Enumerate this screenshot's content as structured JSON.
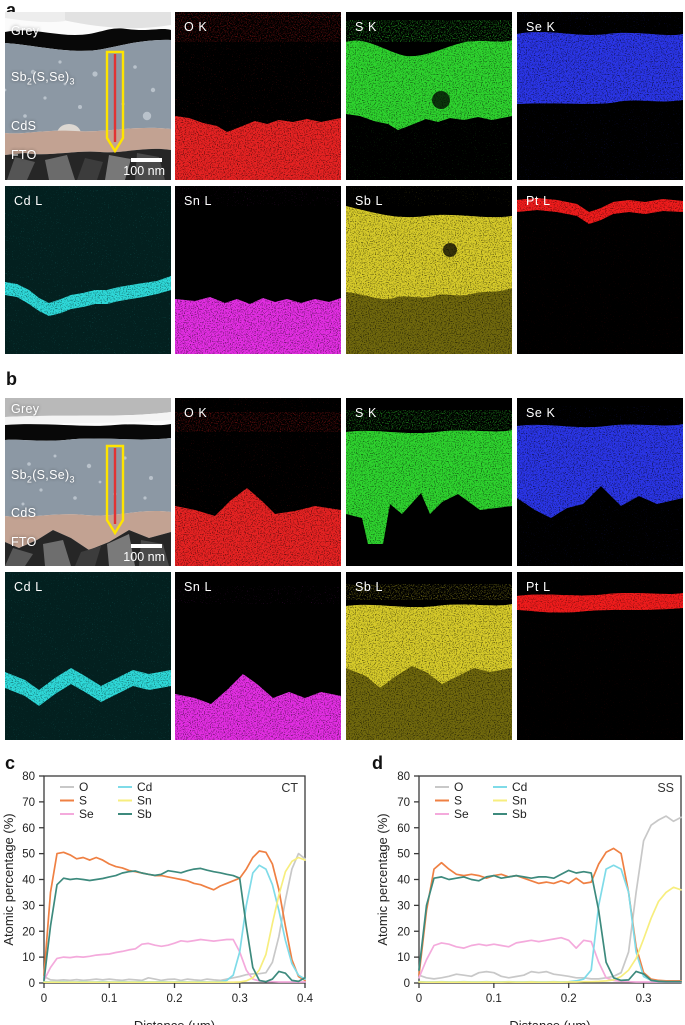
{
  "colors": {
    "o": "#c8c8c8",
    "s": "#ef8043",
    "se": "#f4aadc",
    "cd": "#7fdbe8",
    "sn": "#f7ee7e",
    "sb": "#3d8a7d",
    "map_red": "#e62222",
    "map_green": "#2fd32f",
    "map_blue": "#2b36e6",
    "map_cyan": "#2fd9d9",
    "map_magenta": "#e22ee2",
    "map_yellow": "#d6ca2a",
    "map_olive": "#6f680f",
    "map_pt_red": "#ee1a1a",
    "arrow_outline": "#ffe400",
    "arrow_line": "#e23333"
  },
  "panel_a": {
    "label": "a",
    "tem": {
      "grey": "Grey",
      "f0": "Sb",
      "f1": "2",
      "f2": "(S,Se)",
      "f3": "3",
      "cds": "CdS",
      "fto": "FTO",
      "scale": "100 nm"
    },
    "maps": [
      {
        "label": "O K"
      },
      {
        "label": "S K"
      },
      {
        "label": "Se K"
      },
      {
        "label": "Cd L"
      },
      {
        "label": "Sn L"
      },
      {
        "label": "Sb L"
      },
      {
        "label": "Pt L"
      }
    ]
  },
  "panel_b": {
    "label": "b",
    "tem": {
      "grey": "Grey",
      "f0": "Sb",
      "f1": "2",
      "f2": "(S,Se)",
      "f3": "3",
      "cds": "CdS",
      "fto": "FTO",
      "scale": "100 nm"
    },
    "maps": [
      {
        "label": "O K"
      },
      {
        "label": "S K"
      },
      {
        "label": "Se K"
      },
      {
        "label": "Cd L"
      },
      {
        "label": "Sn L"
      },
      {
        "label": "Sb L"
      },
      {
        "label": "Pt L"
      }
    ]
  },
  "chart_data": [
    {
      "id": "c",
      "panel_label": "c",
      "type": "line",
      "corner_label": "CT",
      "xlabel": "Distance (μm)",
      "ylabel": "Atomic percentage (%)",
      "xlim": [
        0,
        0.4
      ],
      "ylim": [
        0,
        80
      ],
      "xticks": [
        0,
        0.1,
        0.2,
        0.3,
        0.4
      ],
      "yticks": [
        0,
        10,
        20,
        30,
        40,
        50,
        60,
        70,
        80
      ],
      "legend_position": "top-left",
      "grid": false,
      "x_step": 0.01,
      "series": [
        {
          "name": "O",
          "color_key": "o",
          "values": [
            2.5,
            1.2,
            1.0,
            1.2,
            1.0,
            1.3,
            1.0,
            1.2,
            1.5,
            1.2,
            1.5,
            1.2,
            1.0,
            1.4,
            1.2,
            1.0,
            2.0,
            1.5,
            1.0,
            1.4,
            1.5,
            1.0,
            1.5,
            1.2,
            1.0,
            1.5,
            1.2,
            1.0,
            1.5,
            2.0,
            2.5,
            3.2,
            3.5,
            3.6,
            4.0,
            8.0,
            18,
            32,
            44,
            50,
            48
          ]
        },
        {
          "name": "S",
          "color_key": "s",
          "values": [
            3,
            35,
            50,
            50.5,
            49.5,
            48,
            48.5,
            47.5,
            48.5,
            47.5,
            46,
            45,
            44.5,
            43.5,
            43,
            42.5,
            42,
            41.5,
            41.5,
            41,
            40.5,
            40,
            39.5,
            38.5,
            38,
            37,
            36,
            37.5,
            38.5,
            39.5,
            40.5,
            44,
            48.5,
            51,
            50.5,
            46,
            36,
            22,
            9,
            2.5,
            1
          ]
        },
        {
          "name": "Se",
          "color_key": "se",
          "values": [
            1,
            6,
            9.5,
            10,
            9.8,
            10.2,
            10,
            10.3,
            10.8,
            11,
            11.2,
            11.8,
            12.2,
            12.8,
            13.2,
            15,
            15.3,
            14.6,
            14.2,
            14.6,
            15.4,
            16.3,
            16,
            16.4,
            16.8,
            16.5,
            16.2,
            16.5,
            16.8,
            16.8,
            12,
            5,
            1.5,
            0.8,
            0.5,
            0.5,
            0.4,
            0.4,
            0.4,
            0.4,
            0.4
          ]
        },
        {
          "name": "Cd",
          "color_key": "cd",
          "values": [
            0.5,
            0.4,
            0.4,
            0.5,
            0.4,
            0.4,
            0.5,
            0.4,
            0.4,
            0.5,
            0.4,
            0.4,
            0.5,
            0.4,
            0.4,
            0.5,
            0.4,
            0.4,
            0.5,
            0.4,
            0.4,
            0.5,
            0.4,
            0.4,
            0.5,
            0.4,
            0.4,
            0.5,
            1.0,
            3.0,
            12,
            30,
            42.5,
            45.5,
            44,
            38,
            28,
            16.5,
            7.5,
            3,
            1.5
          ]
        },
        {
          "name": "Sn",
          "color_key": "sn",
          "values": [
            0.3,
            0.3,
            0.3,
            0.3,
            0.3,
            0.3,
            0.3,
            0.3,
            0.3,
            0.3,
            0.3,
            0.3,
            0.3,
            0.3,
            0.3,
            0.3,
            0.3,
            0.3,
            0.3,
            0.3,
            0.3,
            0.3,
            0.3,
            0.3,
            0.3,
            0.3,
            0.3,
            0.3,
            0.3,
            0.3,
            0.4,
            0.8,
            2,
            5,
            11,
            23,
            34,
            43,
            47,
            48.5,
            47.5
          ]
        },
        {
          "name": "Sb",
          "color_key": "sb",
          "values": [
            1,
            22,
            38,
            40.5,
            40,
            40.3,
            40,
            39.6,
            40,
            40.4,
            41,
            41.5,
            42.5,
            43,
            43.3,
            42.5,
            42,
            41.6,
            42,
            43.4,
            43,
            42.6,
            43.4,
            44,
            44.3,
            43.6,
            43,
            42.6,
            42,
            41.5,
            40.5,
            22,
            6,
            1,
            0.5,
            1.5,
            4.5,
            3.8,
            1,
            0.6,
            2
          ]
        }
      ]
    },
    {
      "id": "d",
      "panel_label": "d",
      "type": "line",
      "corner_label": "SS",
      "xlabel": "Distance (μm)",
      "ylabel": "Atomic percentage (%)",
      "xlim": [
        0,
        0.35
      ],
      "ylim": [
        0,
        80
      ],
      "xticks": [
        0,
        0.1,
        0.2,
        0.3
      ],
      "yticks": [
        0,
        10,
        20,
        30,
        40,
        50,
        60,
        70,
        80
      ],
      "legend_position": "top-left",
      "grid": false,
      "x_step": 0.01,
      "series": [
        {
          "name": "O",
          "color_key": "o",
          "values": [
            3,
            2,
            1.6,
            2,
            2.6,
            3.4,
            3,
            2.6,
            4,
            4.4,
            4,
            2.6,
            2,
            2.5,
            3,
            4.4,
            4,
            4.4,
            3.4,
            3,
            2.6,
            2,
            2,
            1.6,
            1.6,
            2,
            2.6,
            4,
            12,
            35,
            55,
            61,
            63,
            64.5,
            62.5,
            64
          ]
        },
        {
          "name": "S",
          "color_key": "s",
          "values": [
            3,
            28,
            44,
            46.5,
            44,
            42,
            41.5,
            42,
            41.5,
            40.5,
            41.5,
            42,
            41,
            41.5,
            40.5,
            39.5,
            38.5,
            39,
            38.5,
            39.5,
            38.5,
            40.5,
            38.5,
            39,
            46,
            50.5,
            52,
            50,
            35,
            14,
            4,
            1.5,
            1,
            0.8,
            0.8,
            0.8
          ]
        },
        {
          "name": "Se",
          "color_key": "se",
          "values": [
            2,
            9,
            14.5,
            15.5,
            15,
            14,
            13.5,
            14.5,
            15,
            14.5,
            15,
            14.5,
            14,
            15.5,
            16,
            16.5,
            16,
            16.5,
            17,
            17.5,
            16.5,
            13.5,
            16.5,
            16,
            8,
            2,
            1,
            0.6,
            0.5,
            0.4,
            0.4,
            0.4,
            0.4,
            0.4,
            0.4,
            0.4
          ]
        },
        {
          "name": "Cd",
          "color_key": "cd",
          "values": [
            0.5,
            0.4,
            0.4,
            0.5,
            0.4,
            0.4,
            0.5,
            0.4,
            0.4,
            0.5,
            0.4,
            0.4,
            0.5,
            0.4,
            0.4,
            0.5,
            0.4,
            0.4,
            0.5,
            0.4,
            0.5,
            0.8,
            1.5,
            5,
            30,
            44,
            45.5,
            44,
            35,
            12,
            2.5,
            1,
            0.6,
            0.5,
            0.5,
            0.5
          ]
        },
        {
          "name": "Sn",
          "color_key": "sn",
          "values": [
            0.4,
            0.3,
            0.3,
            0.4,
            0.3,
            0.3,
            0.4,
            0.3,
            0.3,
            0.4,
            0.3,
            0.3,
            0.4,
            0.3,
            0.3,
            0.4,
            0.3,
            0.3,
            0.4,
            0.3,
            0.4,
            0.4,
            0.5,
            0.5,
            0.6,
            0.8,
            1.2,
            2.5,
            5,
            9.5,
            17,
            25,
            31.5,
            35,
            37,
            36
          ]
        },
        {
          "name": "Sb",
          "color_key": "sb",
          "values": [
            5,
            30,
            40.5,
            41,
            40,
            40.5,
            41,
            40,
            39.5,
            41,
            41.5,
            40.5,
            41,
            41.5,
            41,
            40.5,
            41,
            41,
            40.5,
            42,
            43.5,
            42.5,
            43,
            42.5,
            28,
            8,
            2,
            1,
            1.2,
            4.5,
            3.5,
            1,
            0.6,
            0.5,
            0.5,
            0.5
          ]
        }
      ]
    }
  ]
}
